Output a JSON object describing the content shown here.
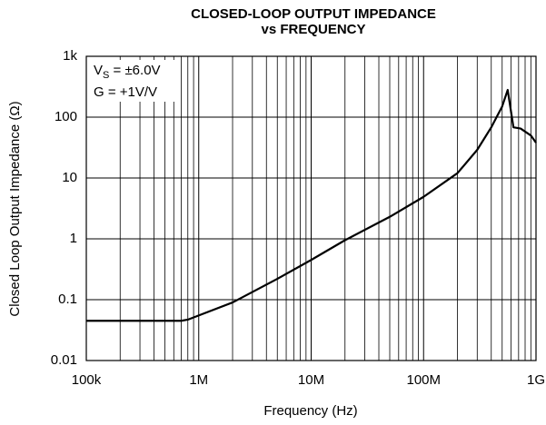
{
  "chart_data": {
    "type": "line",
    "title": [
      "CLOSED-LOOP OUTPUT IMPEDANCE",
      "vs FREQUENCY"
    ],
    "xlabel": "Frequency (Hz)",
    "ylabel": "Closed Loop Output Impedance (Ω)",
    "annotations": [
      {
        "main": "V",
        "sub": "S",
        "text": " = ±6.0V"
      },
      {
        "main": "G = +1V/V"
      }
    ],
    "xscale": "log",
    "yscale": "log",
    "xlim": [
      100000,
      1000000000
    ],
    "ylim": [
      0.01,
      1000
    ],
    "xticks": [
      {
        "value": 100000,
        "label": "100k"
      },
      {
        "value": 1000000,
        "label": "1M"
      },
      {
        "value": 10000000,
        "label": "10M"
      },
      {
        "value": 100000000,
        "label": "100M"
      },
      {
        "value": 1000000000,
        "label": "1G"
      }
    ],
    "yticks": [
      0.01,
      0.1,
      1,
      10,
      100,
      {
        "value": 1000,
        "label": "1k"
      }
    ],
    "grid": true,
    "x_minor_grid": true,
    "series": [
      {
        "color": "#000000",
        "x": [
          100000,
          700000,
          800000,
          1000000,
          2000000,
          5000000,
          10000000,
          20000000,
          50000000,
          100000000,
          200000000,
          300000000,
          400000000,
          500000000,
          560000000,
          630000000,
          730000000,
          900000000,
          1000000000
        ],
        "values": [
          0.045,
          0.045,
          0.047,
          0.055,
          0.09,
          0.22,
          0.45,
          0.95,
          2.3,
          4.9,
          12,
          29,
          68,
          150,
          280,
          68,
          65,
          50,
          38
        ]
      }
    ]
  }
}
